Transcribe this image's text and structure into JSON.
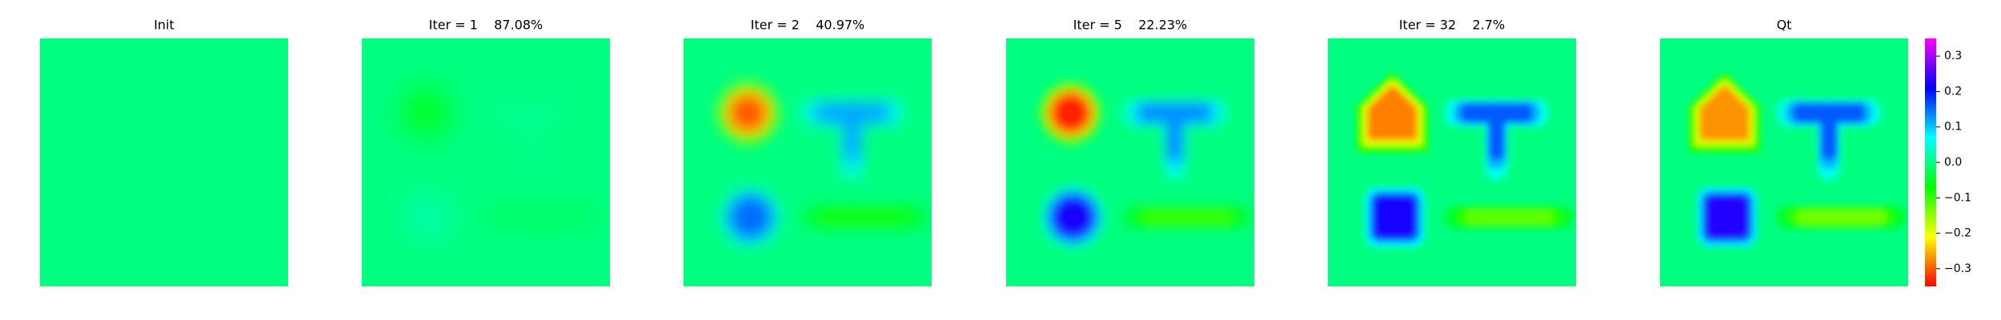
{
  "chart_data": {
    "type": "heatmap",
    "panels": [
      {
        "title": "Init",
        "values": [
          0,
          0,
          0,
          0
        ]
      },
      {
        "title": "Iter = 1    87.08%",
        "values": [
          -0.05,
          0.01,
          0.02,
          -0.02
        ]
      },
      {
        "title": "Iter = 2    40.97%",
        "values": [
          -0.3,
          0.12,
          0.15,
          -0.08
        ]
      },
      {
        "title": "Iter = 5    22.23%",
        "values": [
          -0.33,
          0.13,
          0.22,
          -0.1
        ]
      },
      {
        "title": "Iter = 32    2.7%",
        "values": [
          -0.28,
          0.16,
          0.22,
          -0.12
        ]
      },
      {
        "title": "Qt",
        "values": [
          -0.27,
          0.16,
          0.23,
          -0.13
        ]
      }
    ],
    "colorbar": {
      "ylim": [
        -0.35,
        0.35
      ],
      "yticks": [
        {
          "value": -0.3,
          "label": "−0.3"
        },
        {
          "value": -0.2,
          "label": "−0.2"
        },
        {
          "value": -0.1,
          "label": "−0.1"
        },
        {
          "value": 0,
          "label": "0.0"
        },
        0.1,
        0.2,
        0.3
      ]
    }
  }
}
